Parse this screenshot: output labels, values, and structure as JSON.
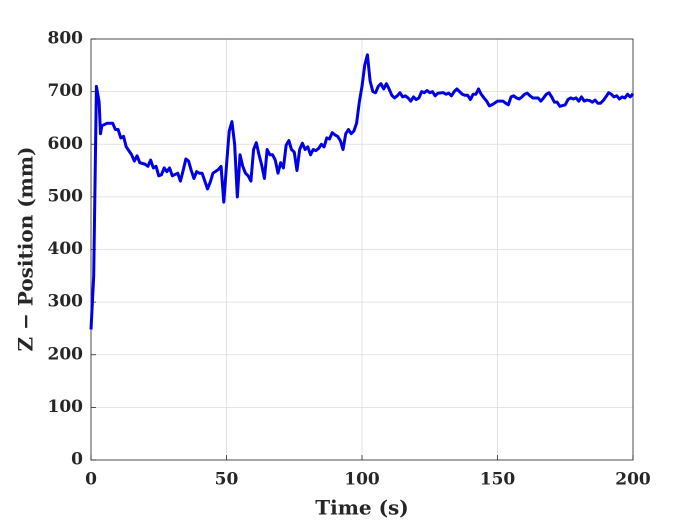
{
  "chart_data": {
    "type": "line",
    "x_label": "Time (s)",
    "y_label": "Z − Position (mm)",
    "color": "#0000e6",
    "x": [
      0,
      1,
      2,
      3,
      3.5,
      4,
      6,
      8,
      9,
      10,
      11,
      12,
      13,
      15,
      16,
      17,
      18,
      20,
      21,
      22,
      23,
      24,
      25,
      26,
      27,
      28,
      29,
      30,
      32,
      33,
      34,
      35,
      36,
      37,
      38,
      39,
      40,
      41,
      42,
      43,
      44,
      45,
      47,
      48,
      49,
      50,
      51,
      52,
      53,
      54,
      55,
      56,
      57,
      58,
      59,
      60,
      61,
      62,
      63,
      64,
      65,
      66,
      67,
      68,
      69,
      70,
      71,
      72,
      73,
      74,
      75,
      76,
      77,
      78,
      79,
      80,
      81,
      82,
      83,
      84,
      85,
      86,
      87,
      88,
      89,
      90,
      91,
      92,
      93,
      94,
      95,
      96,
      97,
      98,
      99,
      100,
      101,
      102,
      103,
      104,
      105,
      106,
      107,
      108,
      109,
      110,
      111,
      112,
      113,
      114,
      115,
      116,
      117,
      118,
      119,
      120,
      121,
      122,
      123,
      124,
      125,
      126,
      127,
      128,
      130,
      131,
      132,
      133,
      134,
      135,
      136,
      137,
      138,
      139,
      140,
      141,
      142,
      143,
      144,
      145,
      146,
      147,
      148,
      150,
      152,
      153,
      154,
      155,
      156,
      157,
      158,
      159,
      160,
      161,
      162,
      163,
      165,
      166,
      167,
      168,
      169,
      170,
      171,
      172,
      173,
      175,
      176,
      177,
      178,
      179,
      180,
      181,
      182,
      183,
      184,
      185,
      186,
      187,
      188,
      189,
      190,
      191,
      192,
      193,
      194,
      195,
      196,
      197,
      198,
      199,
      200
    ],
    "values": [
      248,
      350,
      710,
      680,
      620,
      635,
      640,
      640,
      628,
      628,
      612,
      615,
      595,
      580,
      568,
      578,
      565,
      562,
      558,
      570,
      555,
      558,
      540,
      542,
      555,
      548,
      555,
      540,
      545,
      530,
      550,
      572,
      568,
      550,
      535,
      548,
      545,
      545,
      530,
      515,
      528,
      545,
      552,
      558,
      490,
      560,
      625,
      643,
      600,
      500,
      580,
      558,
      545,
      540,
      530,
      590,
      603,
      580,
      560,
      535,
      590,
      580,
      580,
      570,
      545,
      565,
      555,
      598,
      607,
      590,
      585,
      550,
      590,
      602,
      590,
      595,
      580,
      590,
      588,
      592,
      600,
      595,
      612,
      610,
      622,
      618,
      615,
      607,
      590,
      620,
      628,
      620,
      625,
      640,
      680,
      710,
      750,
      770,
      720,
      700,
      698,
      710,
      715,
      705,
      715,
      705,
      693,
      688,
      692,
      698,
      690,
      692,
      688,
      682,
      690,
      685,
      688,
      700,
      698,
      702,
      698,
      700,
      692,
      697,
      698,
      695,
      697,
      692,
      700,
      705,
      700,
      695,
      693,
      693,
      685,
      695,
      695,
      705,
      695,
      688,
      682,
      673,
      675,
      682,
      682,
      678,
      675,
      690,
      692,
      688,
      686,
      690,
      695,
      697,
      692,
      688,
      688,
      682,
      688,
      695,
      698,
      690,
      680,
      680,
      672,
      675,
      685,
      688,
      686,
      688,
      682,
      690,
      682,
      684,
      683,
      680,
      684,
      678,
      678,
      683,
      690,
      698,
      695,
      690,
      692,
      686,
      690,
      688,
      695,
      690,
      696
    ],
    "xlim": [
      0,
      200
    ],
    "xticks": [
      0,
      50,
      100,
      150,
      200
    ],
    "ylim": [
      0,
      800
    ],
    "yticks": [
      0,
      100,
      200,
      300,
      400,
      500,
      600,
      700,
      800
    ],
    "grid": true
  }
}
